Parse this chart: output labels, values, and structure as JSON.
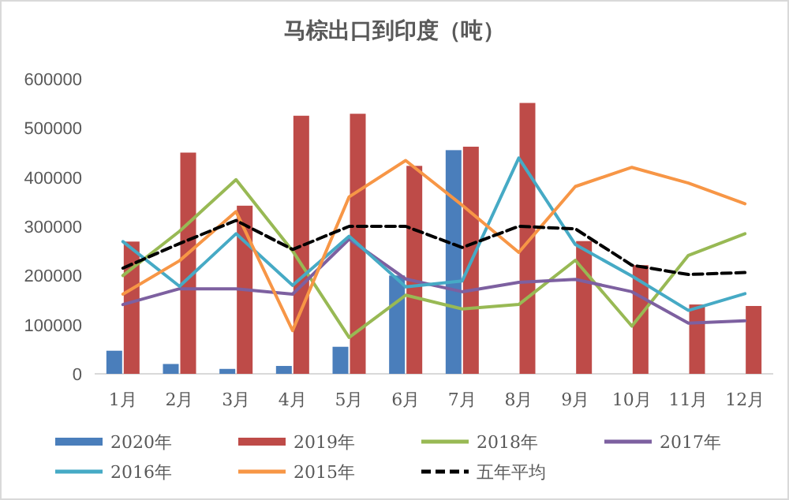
{
  "chart_data": {
    "type": "bar",
    "title": "马棕出口到印度（吨）",
    "categories": [
      "1月",
      "2月",
      "3月",
      "4月",
      "5月",
      "6月",
      "7月",
      "8月",
      "9月",
      "10月",
      "11月",
      "12月"
    ],
    "ylim": [
      0,
      600000
    ],
    "yticks": [
      0,
      100000,
      200000,
      300000,
      400000,
      500000,
      600000
    ],
    "legend": "bottom",
    "series": [
      {
        "name": "2020年",
        "color": "#4a7ebb",
        "values": [
          47000,
          20000,
          10000,
          16000,
          55000,
          200000,
          455000,
          null,
          null,
          null,
          null,
          null
        ]
      },
      {
        "name": "2019年",
        "color": "#be4b48",
        "values": [
          269000,
          450000,
          342000,
          525000,
          529000,
          423000,
          462000,
          551000,
          270000,
          221000,
          141000,
          138000
        ]
      },
      {
        "name": "2018年",
        "type": "line",
        "color": "#98b954",
        "values": [
          200000,
          290000,
          395000,
          250000,
          74000,
          160000,
          132000,
          141000,
          231000,
          97000,
          241000,
          285000
        ]
      },
      {
        "name": "2017年",
        "type": "line",
        "color": "#7d60a0",
        "values": [
          141000,
          173000,
          173000,
          162000,
          274000,
          193000,
          167000,
          186000,
          192000,
          167000,
          103000,
          108000
        ]
      },
      {
        "name": "2016年",
        "type": "line",
        "color": "#46aac5",
        "values": [
          269000,
          178000,
          285000,
          180000,
          280000,
          177000,
          189000,
          439000,
          263000,
          199000,
          129000,
          163000
        ]
      },
      {
        "name": "2015年",
        "type": "line",
        "color": "#f79646",
        "values": [
          162000,
          230000,
          330000,
          88000,
          360000,
          434000,
          343000,
          247000,
          381000,
          420000,
          388000,
          346000
        ]
      },
      {
        "name": "五年平均",
        "type": "line",
        "color": "#000000",
        "line_style": "dashed",
        "values": [
          215000,
          265000,
          312000,
          253000,
          300000,
          300000,
          257000,
          300000,
          295000,
          221000,
          202000,
          206000
        ]
      }
    ]
  }
}
